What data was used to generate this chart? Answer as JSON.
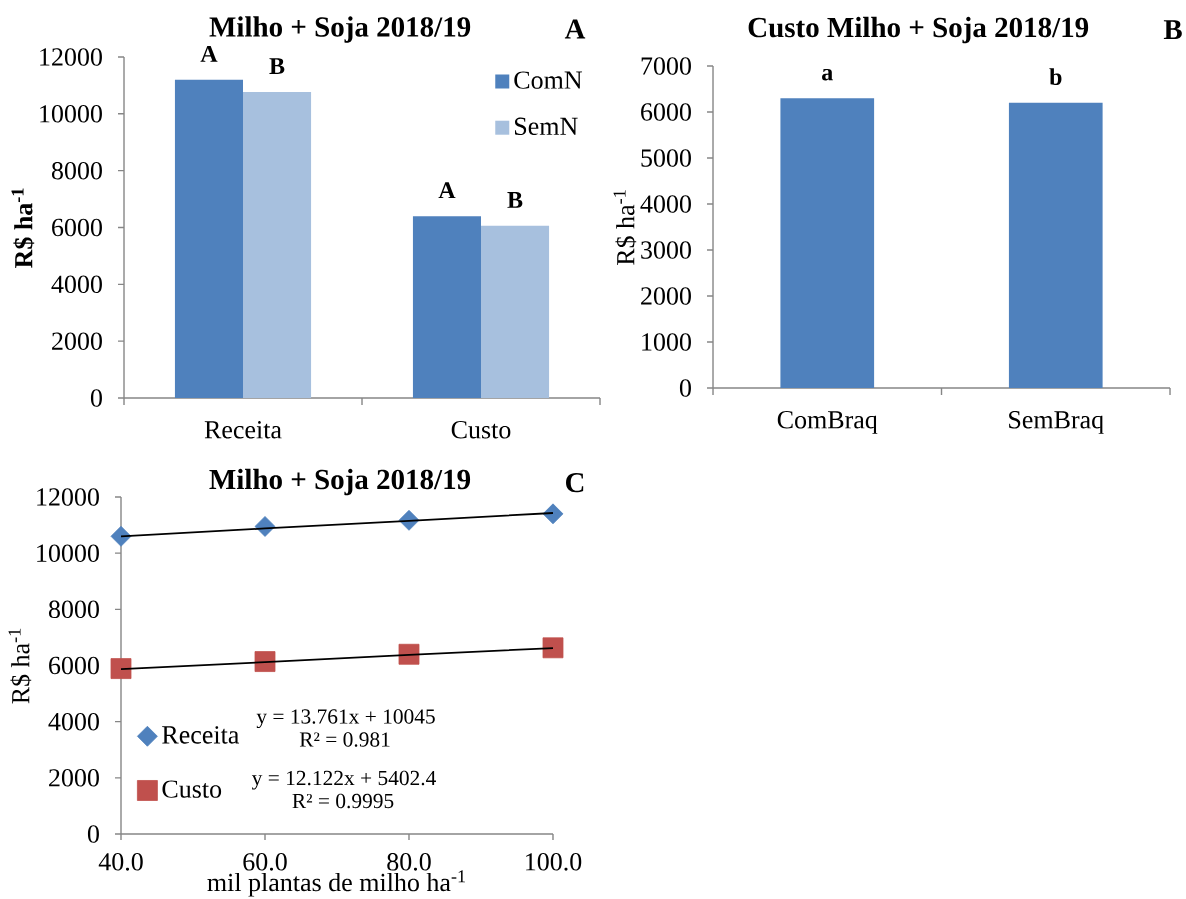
{
  "chart_data": [
    {
      "type": "bar",
      "title": "Milho + Soja 2018/19",
      "ylabel": "R$ ha$^{-1}$",
      "categories": [
        "Receita",
        "Custo"
      ],
      "series": [
        {
          "name": "ComN",
          "color": "#4f81bd",
          "values": [
            11200,
            6400
          ],
          "value_labels": [
            "A",
            "A"
          ]
        },
        {
          "name": "SemN",
          "color": "#a7c0de",
          "values": [
            10770,
            6060
          ],
          "value_labels": [
            "B",
            "B"
          ]
        }
      ],
      "ylim": [
        0,
        12000
      ],
      "yticks": [
        0,
        2000,
        4000,
        6000,
        8000,
        10000,
        12000
      ],
      "legend": "top right",
      "annotations": [
        "A"
      ]
    },
    {
      "type": "bar",
      "title": "Custo Milho + Soja 2018/19",
      "ylabel": "R$ ha$^{-1}$",
      "categories": [
        "ComBraq",
        "SemBraq"
      ],
      "values": [
        6300,
        6200
      ],
      "value_labels": [
        "a",
        "b"
      ],
      "color": "#4f81bd",
      "ylim": [
        0,
        7000
      ],
      "yticks": [
        0,
        1000,
        2000,
        3000,
        4000,
        5000,
        6000,
        7000
      ],
      "annotations": [
        "B"
      ]
    },
    {
      "type": "scatter",
      "title": "Milho + Soja 2018/19",
      "xlabel": "mil plantas de milho ha$^{-1}$",
      "ylabel": "R$ ha$^{-1}$",
      "x": [
        40,
        60,
        80,
        100
      ],
      "series": [
        {
          "name": "Receita",
          "color": "#4f81bd",
          "marker": "diamond",
          "values": [
            10600,
            10950,
            11170,
            11400
          ]
        },
        {
          "name": "Custo",
          "color": "#c0504d",
          "marker": "square",
          "values": [
            5890,
            6140,
            6400,
            6630
          ]
        },
        {
          "type": "line",
          "color": "#000000",
          "marker": "none",
          "values": [
            10600,
            10880,
            11150,
            11430
          ]
        },
        {
          "type": "line",
          "color": "#000000",
          "marker": "none",
          "values": [
            5870,
            6120,
            6380,
            6620
          ]
        }
      ],
      "xlim": [
        40,
        100
      ],
      "xticks": [
        {
          "value": 40,
          "label": "40.0"
        },
        {
          "value": 60,
          "label": "60.0"
        },
        {
          "value": 80,
          "label": "80.0"
        },
        {
          "value": 100,
          "label": "100.0"
        }
      ],
      "ylim": [
        0,
        12000
      ],
      "yticks": [
        0,
        2000,
        4000,
        6000,
        8000,
        10000,
        12000
      ],
      "legend": "bottom left",
      "annotations": [
        "C",
        "y = 13.761x + 10045",
        "R² = 0.981",
        "y = 12.122x + 5402.4",
        "R² = 0.9995"
      ]
    }
  ]
}
